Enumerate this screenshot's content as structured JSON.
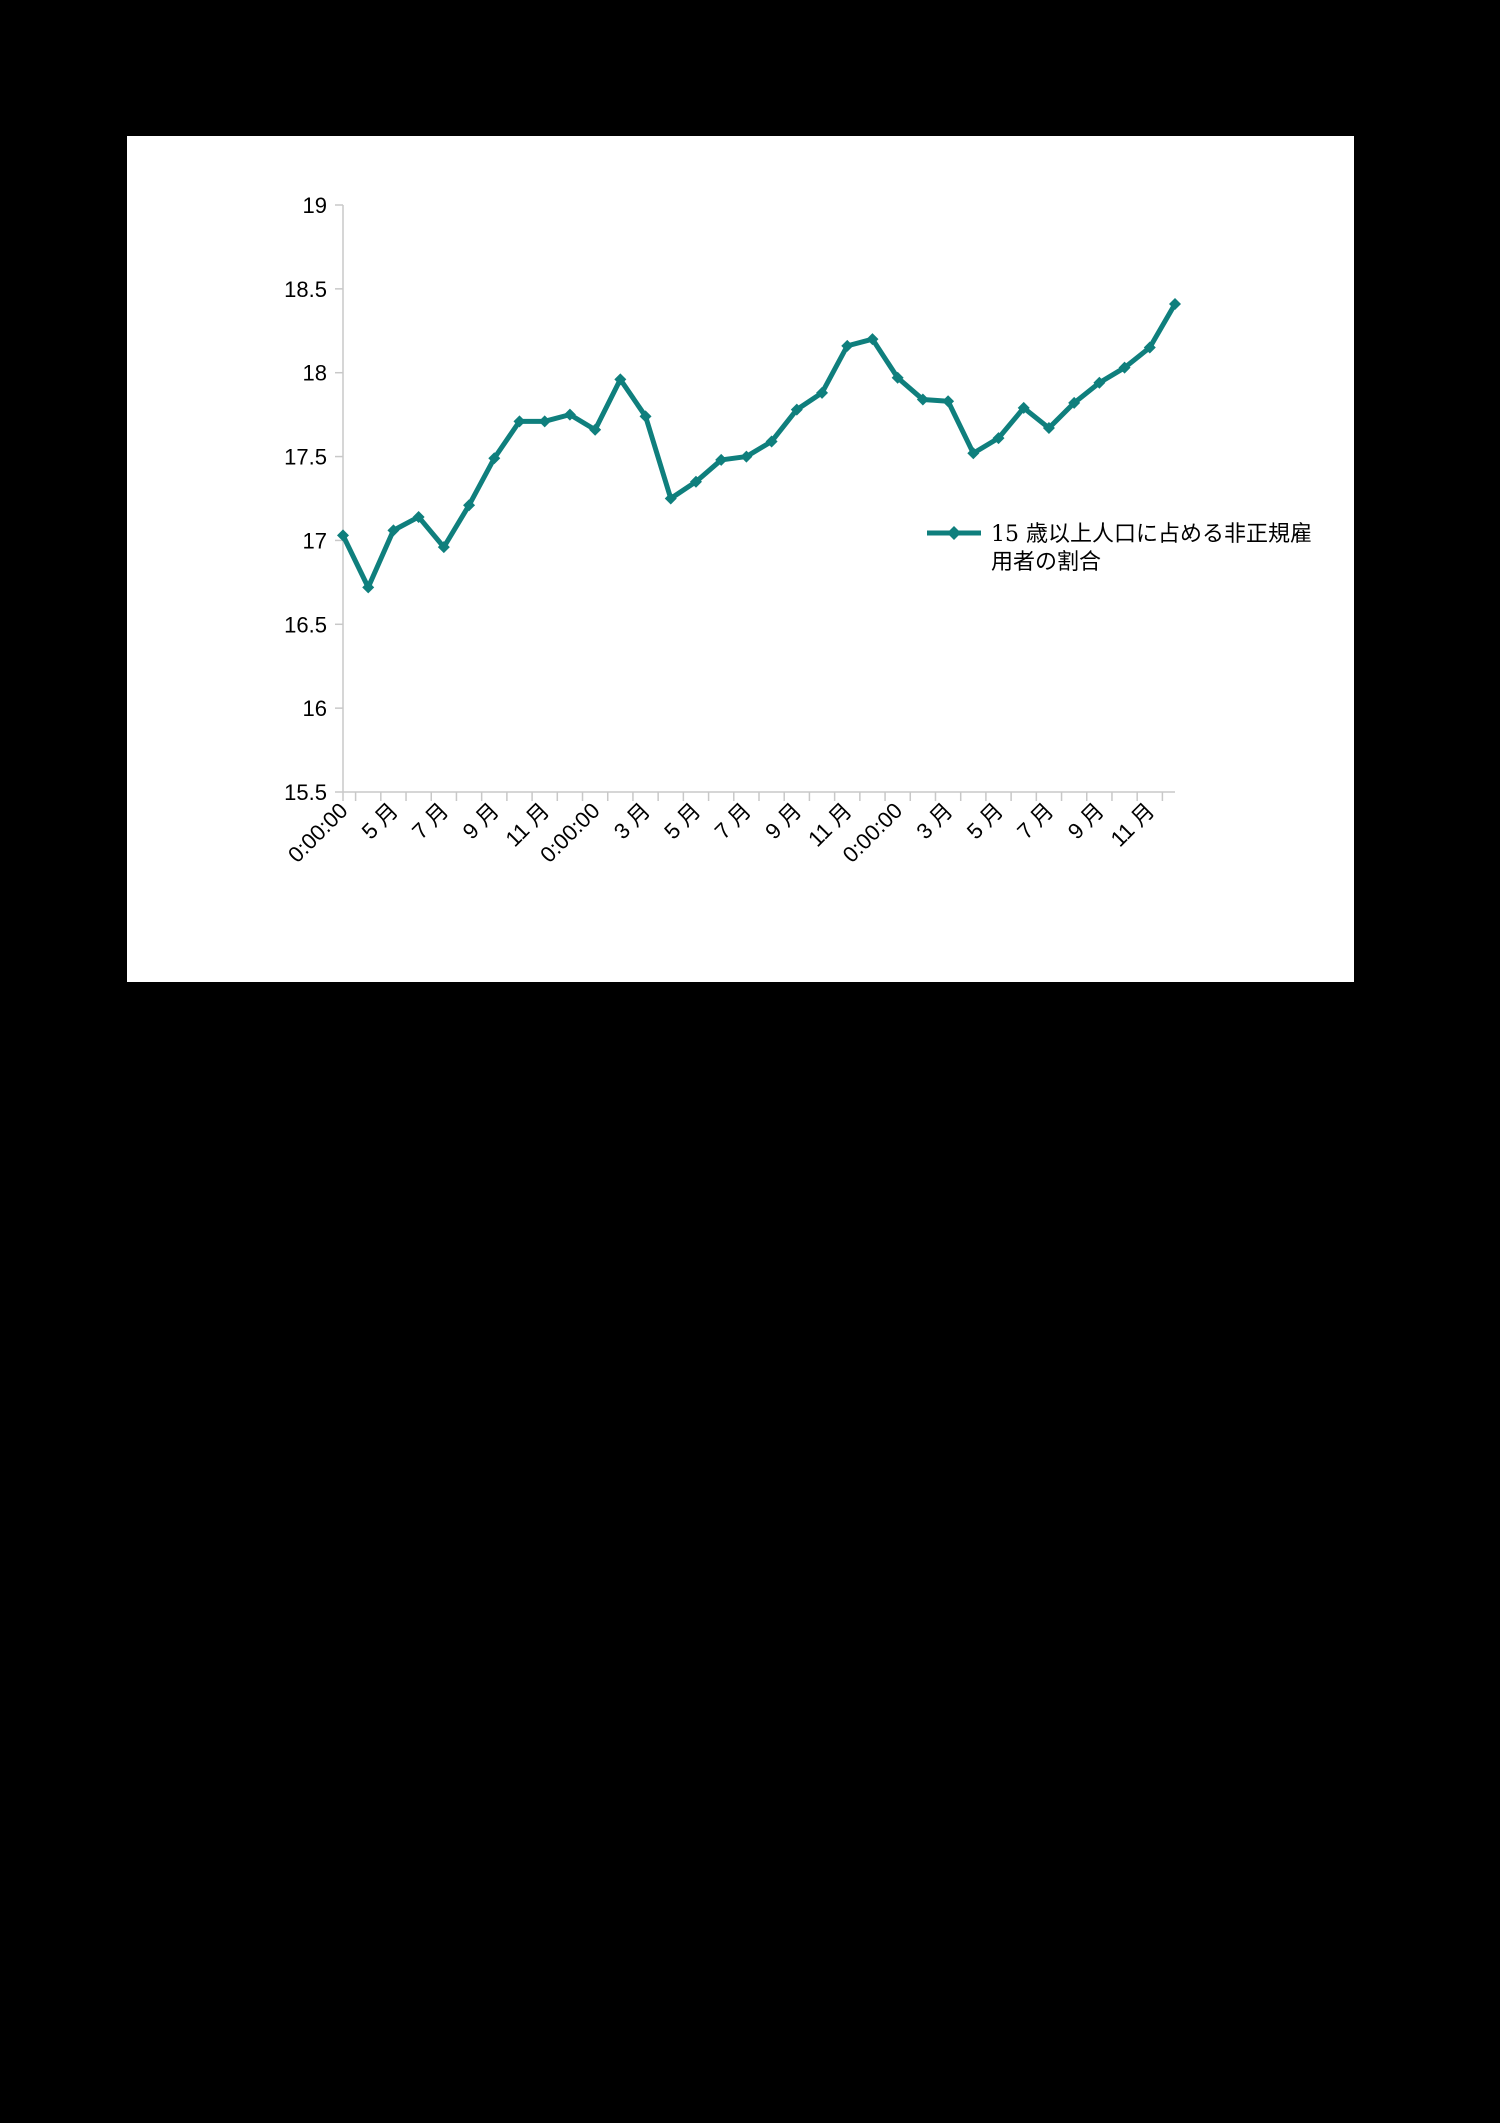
{
  "chart_data": {
    "type": "line",
    "title": "",
    "xlabel": "",
    "ylabel": "",
    "ylim": [
      15.5,
      19
    ],
    "yticks": [
      "15.5",
      "16",
      "16.5",
      "17",
      "17.5",
      "18",
      "18.5",
      "19"
    ],
    "xticks": [
      "0:00:00",
      "5 月",
      "7 月",
      "9 月",
      "11 月",
      "0:00:00",
      "3 月",
      "5 月",
      "7 月",
      "9 月",
      "11 月",
      "0:00:00",
      "3 月",
      "5 月",
      "7 月",
      "9 月",
      "11 月"
    ],
    "grid": false,
    "legend_position": "right",
    "series": [
      {
        "name": "15 歳以上人口に占める非正規雇用者の割合",
        "color": "#0f7f7d",
        "marker": "diamond",
        "values": [
          17.03,
          16.72,
          17.06,
          17.14,
          16.96,
          17.21,
          17.49,
          17.71,
          17.71,
          17.75,
          17.66,
          17.96,
          17.74,
          17.25,
          17.35,
          17.48,
          17.5,
          17.59,
          17.78,
          17.88,
          18.16,
          18.2,
          17.97,
          17.84,
          17.83,
          17.52,
          17.61,
          17.79,
          17.67,
          17.82,
          17.94,
          18.03,
          18.15,
          18.41
        ]
      }
    ]
  }
}
